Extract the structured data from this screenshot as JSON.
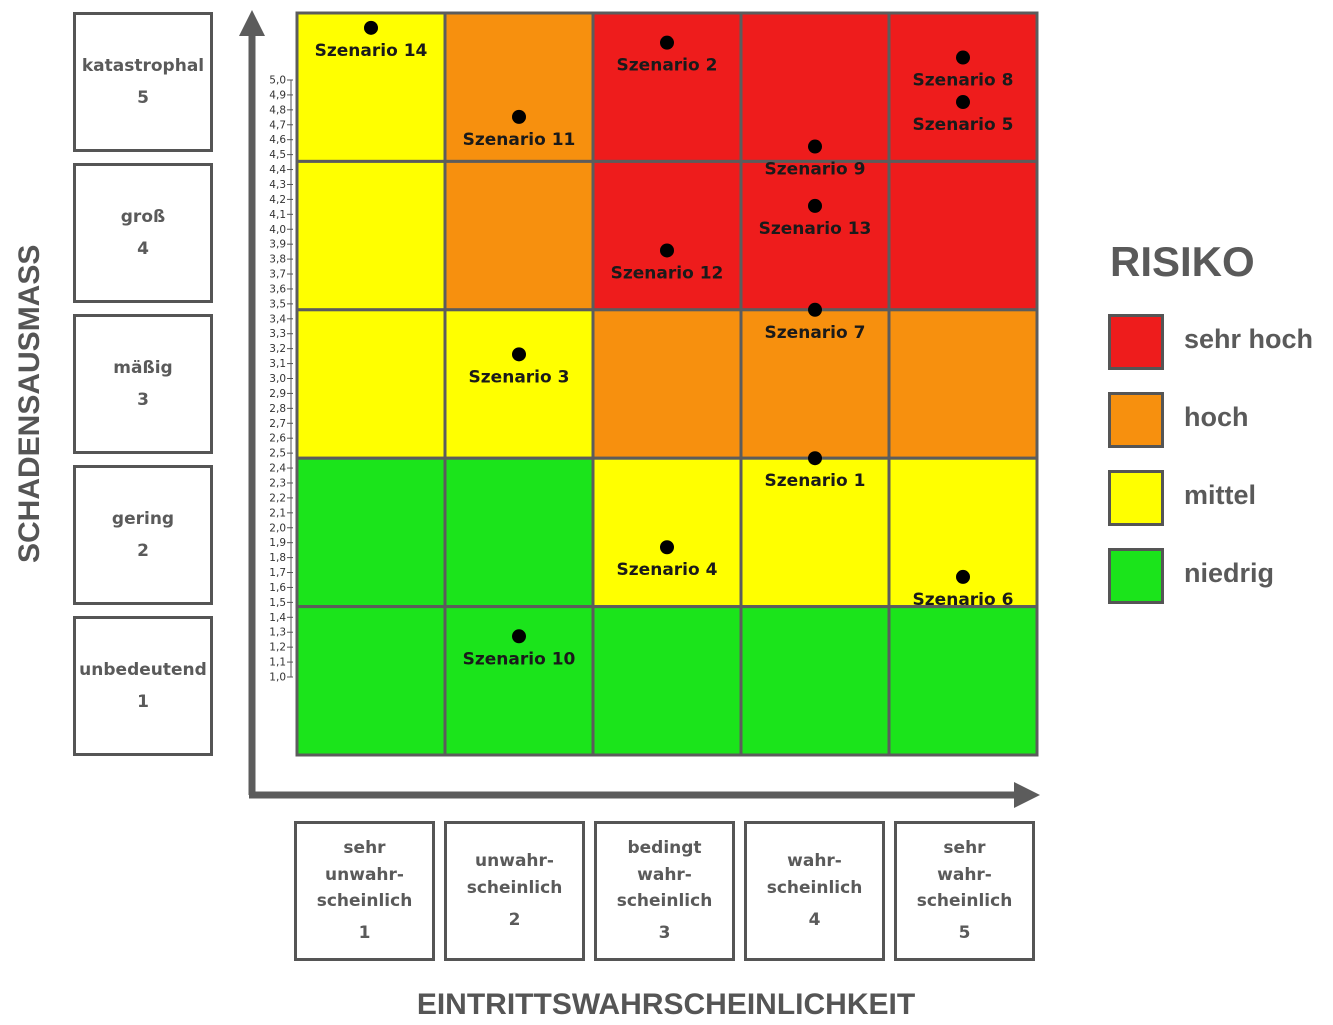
{
  "chart_data": {
    "type": "heatmap",
    "title": "",
    "xlabel": "EINTRITTSWAHRSCHEINLICHKEIT",
    "ylabel": "SCHADENSAUSMASS",
    "x_categories": [
      {
        "label": "sehr\nunwahr-\nscheinlich",
        "value": "1"
      },
      {
        "label": "unwahr-\nscheinlich",
        "value": "2"
      },
      {
        "label": "bedingt\nwahr-\nscheinlich",
        "value": "3"
      },
      {
        "label": "wahr-\nscheinlich",
        "value": "4"
      },
      {
        "label": "sehr\nwahr-\nscheinlich",
        "value": "5"
      }
    ],
    "y_categories": [
      {
        "label": "katastrophal",
        "value": "5"
      },
      {
        "label": "groß",
        "value": "4"
      },
      {
        "label": "mäßig",
        "value": "3"
      },
      {
        "label": "gering",
        "value": "2"
      },
      {
        "label": "unbedeutend",
        "value": "1"
      }
    ],
    "y_ticks": [
      "1,0",
      "1,1",
      "1,2",
      "1,3",
      "1,4",
      "1,5",
      "1,6",
      "1,7",
      "1,8",
      "1,9",
      "2,0",
      "2,1",
      "2,2",
      "2,3",
      "2,4",
      "2,5",
      "2,6",
      "2,7",
      "2,8",
      "2,9",
      "3,0",
      "3,1",
      "3,2",
      "3,3",
      "3,4",
      "3,5",
      "3,6",
      "3,7",
      "3,8",
      "3,9",
      "4,0",
      "4,1",
      "4,2",
      "4,3",
      "4,4",
      "4,5",
      "4,6",
      "4,7",
      "4,8",
      "4,9",
      "5,0"
    ],
    "ylim": [
      1.0,
      5.0
    ],
    "risk_matrix": [
      [
        "mittel",
        "hoch",
        "sehr hoch",
        "sehr hoch",
        "sehr hoch"
      ],
      [
        "mittel",
        "hoch",
        "sehr hoch",
        "sehr hoch",
        "sehr hoch"
      ],
      [
        "mittel",
        "mittel",
        "hoch",
        "hoch",
        "hoch"
      ],
      [
        "niedrig",
        "niedrig",
        "mittel",
        "mittel",
        "mittel"
      ],
      [
        "niedrig",
        "niedrig",
        "niedrig",
        "niedrig",
        "niedrig"
      ]
    ],
    "risk_colors": {
      "sehr hoch": "#ee1c1c",
      "hoch": "#f7900e",
      "mittel": "#ffff00",
      "niedrig": "#1be41b"
    },
    "points": [
      {
        "label": "Szenario 1",
        "x": 4.5,
        "y": 2.0
      },
      {
        "label": "Szenario 2",
        "x": 3.5,
        "y": 4.8
      },
      {
        "label": "Szenario 3",
        "x": 2.5,
        "y": 2.7
      },
      {
        "label": "Szenario 4",
        "x": 3.5,
        "y": 1.4
      },
      {
        "label": "Szenario 5",
        "x": 5.5,
        "y": 4.4
      },
      {
        "label": "Szenario 6",
        "x": 5.5,
        "y": 1.2
      },
      {
        "label": "Szenario 7",
        "x": 4.5,
        "y": 3.0
      },
      {
        "label": "Szenario 8",
        "x": 5.5,
        "y": 4.7
      },
      {
        "label": "Szenario 9",
        "x": 4.5,
        "y": 4.1
      },
      {
        "label": "Szenario 10",
        "x": 2.5,
        "y": 0.8
      },
      {
        "label": "Szenario 11",
        "x": 2.5,
        "y": 4.3
      },
      {
        "label": "Szenario 12",
        "x": 3.5,
        "y": 3.4
      },
      {
        "label": "Szenario 13",
        "x": 4.5,
        "y": 3.7
      },
      {
        "label": "Szenario 14",
        "x": 1.5,
        "y": 4.9
      }
    ]
  },
  "legend": {
    "title": "RISIKO",
    "items": [
      {
        "label": "sehr hoch",
        "color": "#ee1c1c"
      },
      {
        "label": "hoch",
        "color": "#f7900e"
      },
      {
        "label": "mittel",
        "color": "#ffff00"
      },
      {
        "label": "niedrig",
        "color": "#1be41b"
      }
    ]
  }
}
